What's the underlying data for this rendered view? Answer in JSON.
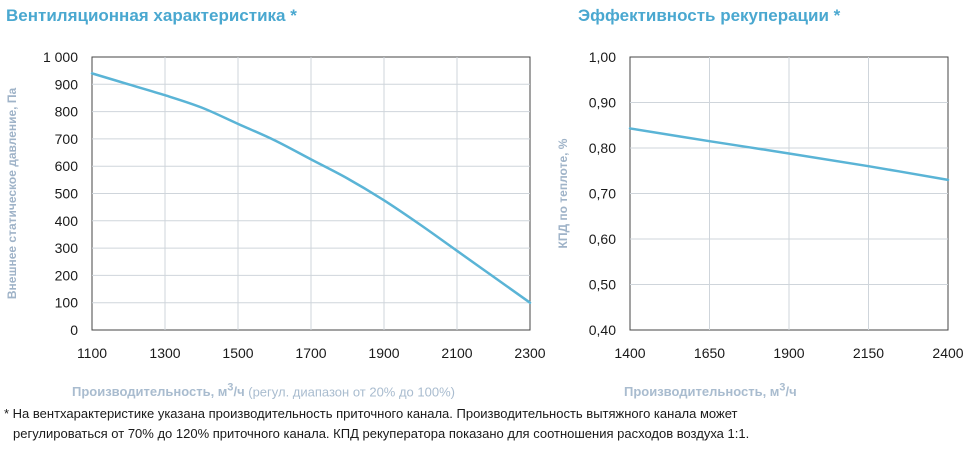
{
  "chart_data": [
    {
      "type": "line",
      "title": "Вентиляционная характеристика *",
      "ylabel": "Внешнее статическое давление, Па",
      "xlabel_bold": "Производительность, м",
      "xlabel_sup": "3",
      "xlabel_unit": "/ч",
      "xlabel_extra": " (регул. диапазон от 20% до 100%)",
      "x_ticks": [
        "1100",
        "1300",
        "1500",
        "1700",
        "1900",
        "2100",
        "2300"
      ],
      "y_ticks": [
        "0",
        "100",
        "200",
        "300",
        "400",
        "500",
        "600",
        "700",
        "800",
        "900",
        "1 000"
      ],
      "xlim": [
        1100,
        2300
      ],
      "ylim": [
        0,
        1000
      ],
      "grid": true,
      "color": "#5ab4d6",
      "series": [
        {
          "x": [
            1100,
            1200,
            1300,
            1400,
            1500,
            1600,
            1700,
            1800,
            1900,
            2000,
            2100,
            2200,
            2300
          ],
          "values": [
            940,
            900,
            860,
            815,
            755,
            695,
            625,
            555,
            475,
            385,
            290,
            195,
            100
          ]
        }
      ]
    },
    {
      "type": "line",
      "title": "Эффективность рекуперации *",
      "ylabel": "КПД по теплоте, %",
      "xlabel_bold": "Производительность, м",
      "xlabel_sup": "3",
      "xlabel_unit": "/ч",
      "x_ticks": [
        "1400",
        "1650",
        "1900",
        "2150",
        "2400"
      ],
      "y_ticks": [
        "0,40",
        "0,50",
        "0,60",
        "0,70",
        "0,80",
        "0,90",
        "1,00"
      ],
      "xlim": [
        1400,
        2400
      ],
      "ylim": [
        0.4,
        1.0
      ],
      "grid": true,
      "color": "#5ab4d6",
      "series": [
        {
          "x": [
            1400,
            1650,
            1900,
            2150,
            2400
          ],
          "values": [
            0.843,
            0.815,
            0.788,
            0.76,
            0.73
          ]
        }
      ]
    }
  ],
  "footnote": {
    "line1": "* На вентхарактеристике указана производительность приточного канала. Производительность вытяжного канала может",
    "line2": "регулироваться от 70% до 120% приточного канала. КПД рекуператора показано для соотношения расходов воздуха 1:1."
  }
}
